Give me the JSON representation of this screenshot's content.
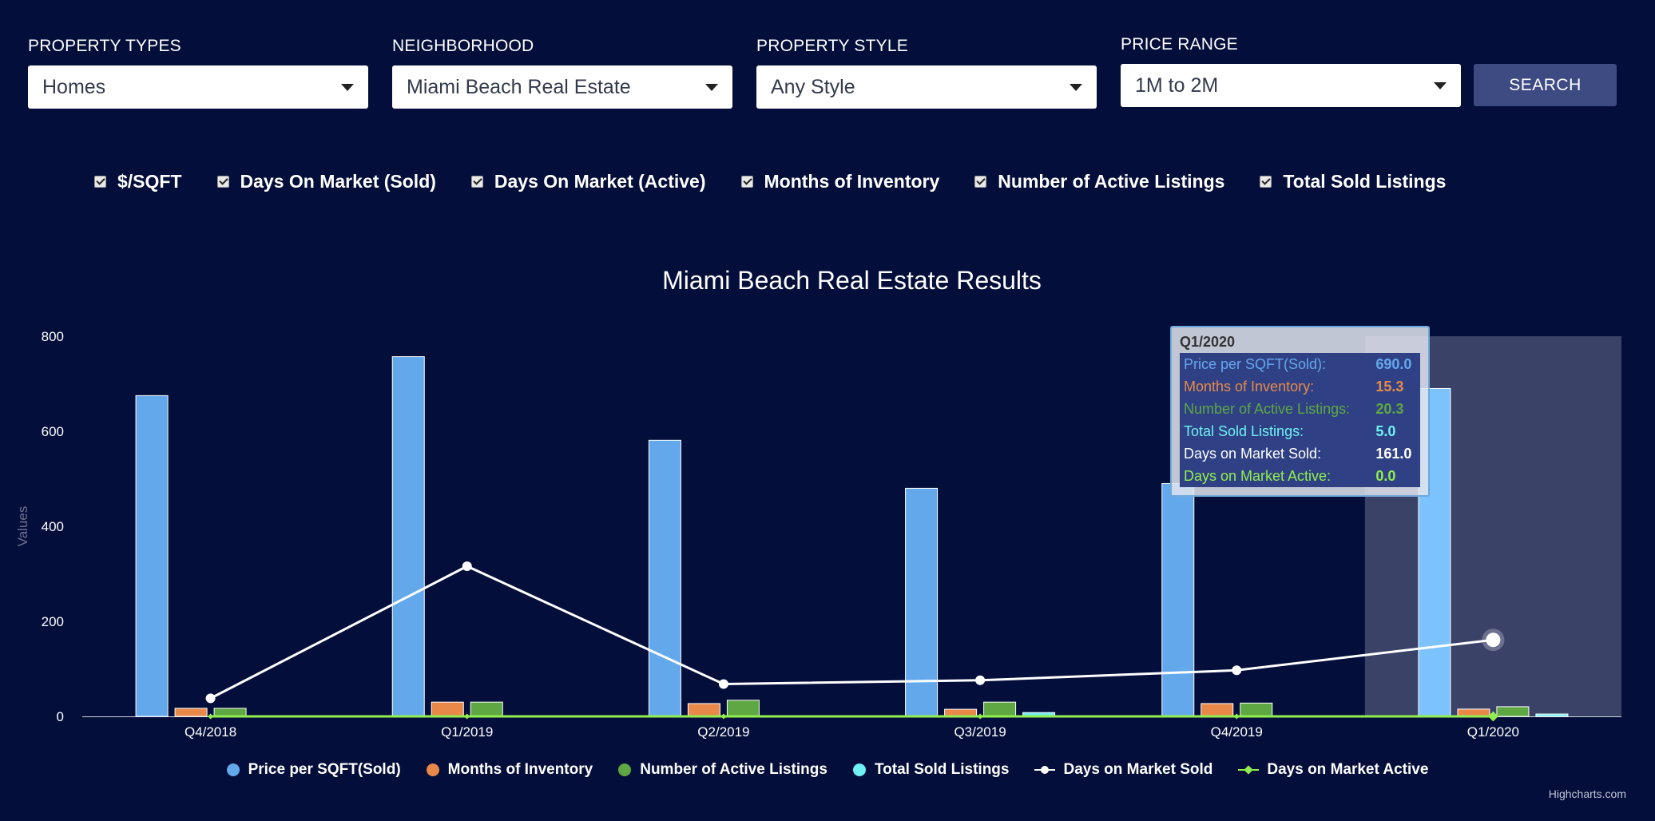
{
  "filters": [
    {
      "label": "PROPERTY TYPES",
      "value": "Homes"
    },
    {
      "label": "NEIGHBORHOOD",
      "value": "Miami Beach Real Estate"
    },
    {
      "label": "PROPERTY STYLE",
      "value": "Any Style"
    },
    {
      "label": "PRICE RANGE",
      "value": "1M to 2M"
    }
  ],
  "search_label": "SEARCH",
  "toggles": [
    "$/SQFT",
    "Days On Market (Sold)",
    "Days On Market (Active)",
    "Months of Inventory",
    "Number of Active Listings",
    "Total Sold Listings"
  ],
  "credits": "Highcharts.com",
  "colors": {
    "background": "#040e3a",
    "price": "#64a8ec",
    "price_highlight": "#7cc2fc",
    "inventory": "#e8894a",
    "active_listings": "#5ea742",
    "sold_listings": "#6ff0f2",
    "dom_sold": "#ffffff",
    "dom_active": "#90ee4e",
    "highlight_band": "#3a4268"
  },
  "tooltip": {
    "title": "Q1/2020",
    "rows": [
      {
        "label": "Price per SQFT(Sold):",
        "value": "690.0",
        "color": "#64a8ec"
      },
      {
        "label": "Months of Inventory:",
        "value": "15.3",
        "color": "#e8894a"
      },
      {
        "label": "Number of Active Listings:",
        "value": "20.3",
        "color": "#5ea742"
      },
      {
        "label": "Total Sold Listings:",
        "value": "5.0",
        "color": "#6ff0f2"
      },
      {
        "label": "Days on Market Sold:",
        "value": "161.0",
        "color": "#ffffff"
      },
      {
        "label": "Days on Market Active:",
        "value": "0.0",
        "color": "#90ee4e"
      }
    ]
  },
  "chart_data": {
    "type": "bar",
    "title": "Miami Beach Real Estate Results",
    "ylabel": "Values",
    "xlabel": "",
    "ylim": [
      0,
      800
    ],
    "yticks": [
      0,
      200,
      400,
      600,
      800
    ],
    "categories": [
      "Q4/2018",
      "Q1/2019",
      "Q2/2019",
      "Q3/2019",
      "Q4/2019",
      "Q1/2020"
    ],
    "highlighted_category": "Q1/2020",
    "legend_position": "bottom",
    "series": [
      {
        "name": "Price per SQFT(Sold)",
        "kind": "column",
        "values": [
          675,
          757,
          581,
          480,
          490,
          690
        ]
      },
      {
        "name": "Months of Inventory",
        "kind": "column",
        "values": [
          17,
          30,
          27,
          15,
          27,
          15.3
        ]
      },
      {
        "name": "Number of Active Listings",
        "kind": "column",
        "values": [
          17,
          30,
          34,
          30,
          28,
          20.3
        ]
      },
      {
        "name": "Total Sold Listings",
        "kind": "column",
        "values": [
          1,
          1,
          1,
          8,
          1,
          5
        ]
      },
      {
        "name": "Days on Market Sold",
        "kind": "line",
        "values": [
          38,
          316,
          68,
          76,
          97,
          161
        ]
      },
      {
        "name": "Days on Market Active",
        "kind": "line",
        "values": [
          0,
          0,
          0,
          0,
          0,
          0
        ]
      }
    ]
  }
}
